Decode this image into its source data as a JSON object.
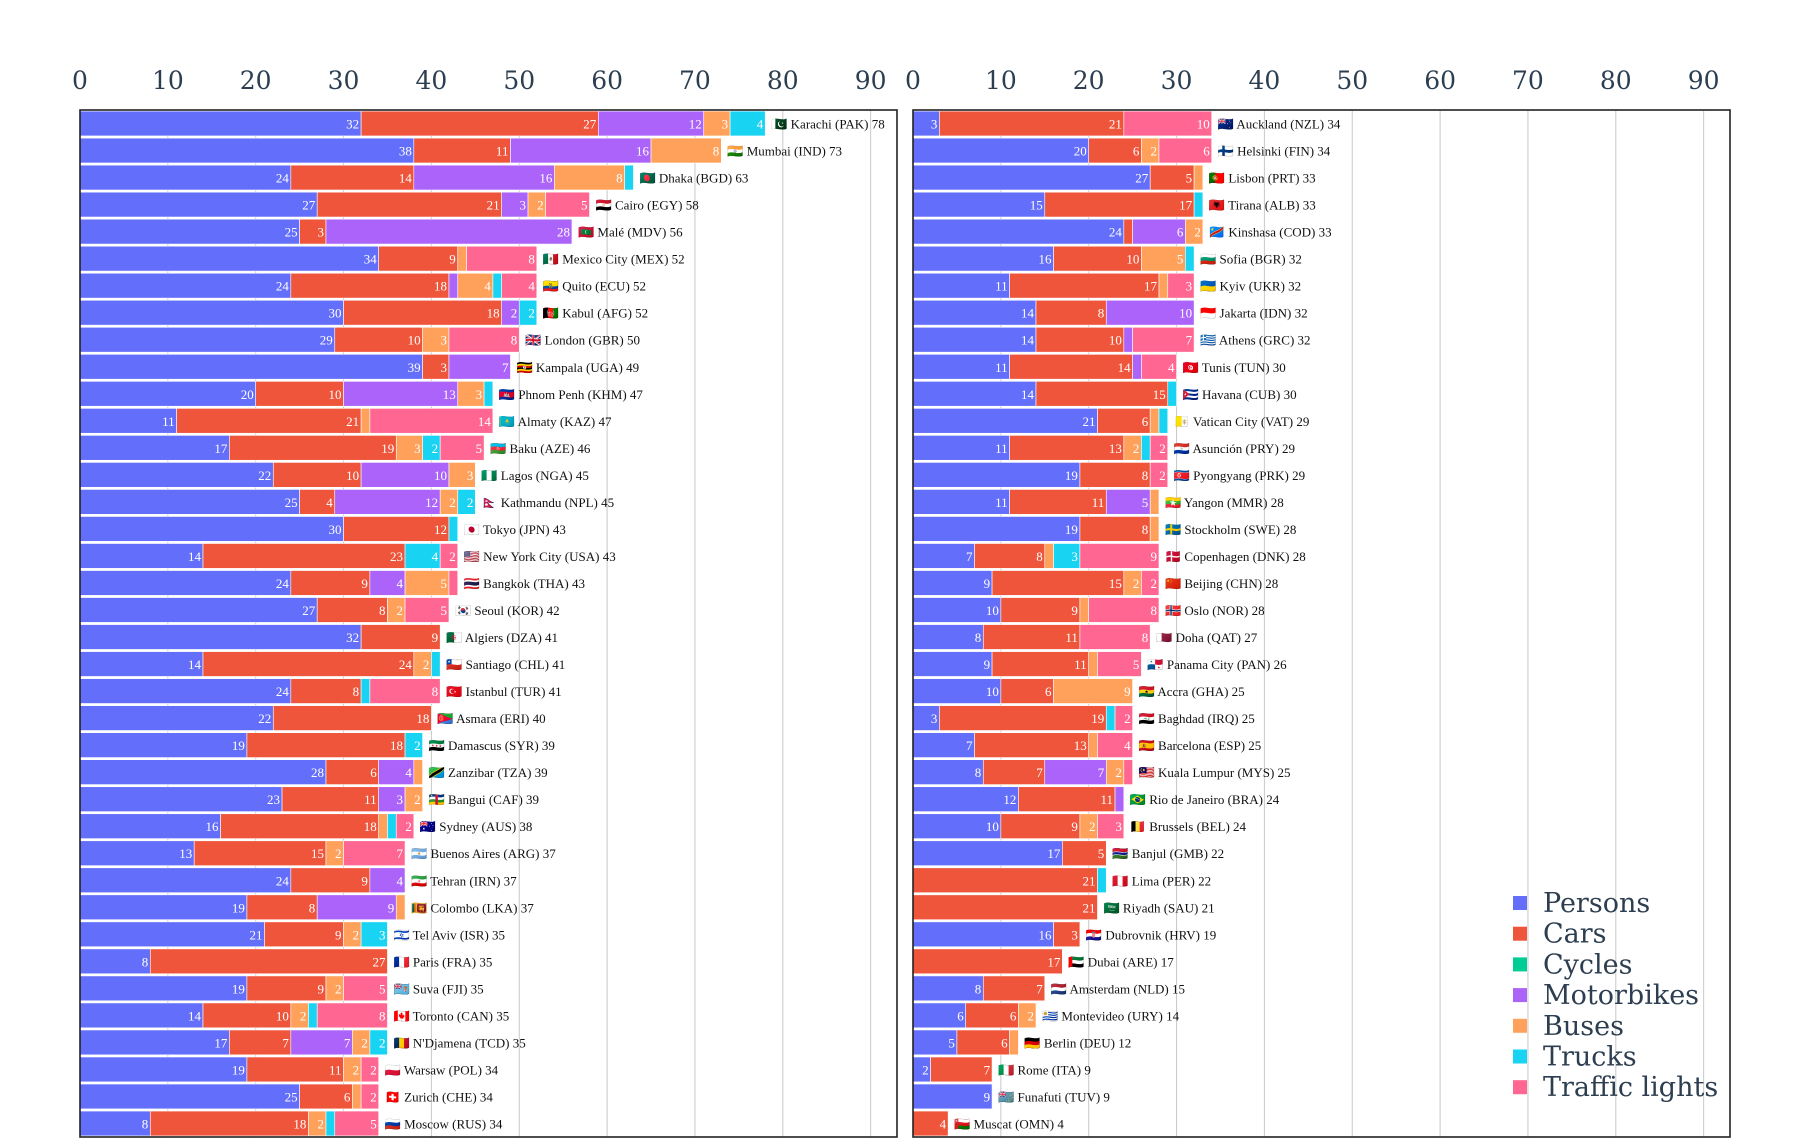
{
  "chart_data": {
    "type": "bar",
    "orientation": "horizontal",
    "stacked": true,
    "xlim": [
      0,
      93
    ],
    "xticks": [
      0,
      10,
      20,
      30,
      40,
      50,
      60,
      70,
      80,
      90
    ],
    "grid": "vertical",
    "legend_position": "bottom-right",
    "series": [
      {
        "name": "Persons",
        "color": "#636efa"
      },
      {
        "name": "Cars",
        "color": "#ef553b"
      },
      {
        "name": "Cycles",
        "color": "#00cc96"
      },
      {
        "name": "Motorbikes",
        "color": "#ab63fa"
      },
      {
        "name": "Buses",
        "color": "#ffa15a"
      },
      {
        "name": "Trucks",
        "color": "#19d3f3"
      },
      {
        "name": "Traffic lights",
        "color": "#ff6692"
      }
    ],
    "panels": [
      {
        "rows": [
          {
            "label": "🇵🇰 Karachi (PAK) 78",
            "values": [
              32,
              27,
              0,
              12,
              3,
              4,
              0
            ]
          },
          {
            "label": "🇮🇳 Mumbai (IND) 73",
            "values": [
              38,
              11,
              0,
              16,
              8,
              0,
              0
            ]
          },
          {
            "label": "🇧🇩 Dhaka (BGD) 63",
            "values": [
              24,
              14,
              0,
              16,
              8,
              1,
              0
            ]
          },
          {
            "label": "🇪🇬 Cairo (EGY) 58",
            "values": [
              27,
              21,
              0,
              3,
              2,
              0,
              5
            ]
          },
          {
            "label": "🇲🇻 Malé (MDV) 56",
            "values": [
              25,
              3,
              0,
              28,
              0,
              0,
              0
            ]
          },
          {
            "label": "🇲🇽 Mexico City (MEX) 52",
            "values": [
              34,
              9,
              0,
              0,
              1,
              0,
              8
            ]
          },
          {
            "label": "🇪🇨 Quito (ECU) 52",
            "values": [
              24,
              18,
              0,
              1,
              4,
              1,
              4
            ]
          },
          {
            "label": "🇦🇫 Kabul (AFG) 52",
            "values": [
              30,
              18,
              0,
              2,
              0,
              2,
              0
            ]
          },
          {
            "label": "🇬🇧 London (GBR) 50",
            "values": [
              29,
              10,
              0,
              0,
              3,
              0,
              8
            ]
          },
          {
            "label": "🇺🇬 Kampala (UGA) 49",
            "values": [
              39,
              3,
              0,
              7,
              0,
              0,
              0
            ]
          },
          {
            "label": "🇰🇭 Phnom Penh (KHM) 47",
            "values": [
              20,
              10,
              0,
              13,
              3,
              1,
              0
            ]
          },
          {
            "label": "🇰🇿 Almaty (KAZ) 47",
            "values": [
              11,
              21,
              0,
              0,
              1,
              0,
              14
            ]
          },
          {
            "label": "🇦🇿 Baku (AZE) 46",
            "values": [
              17,
              19,
              0,
              0,
              3,
              2,
              5
            ]
          },
          {
            "label": "🇳🇬 Lagos (NGA) 45",
            "values": [
              22,
              10,
              0,
              10,
              3,
              0,
              0
            ]
          },
          {
            "label": "🇳🇵 Kathmandu (NPL) 45",
            "values": [
              25,
              4,
              0,
              12,
              2,
              2,
              0
            ]
          },
          {
            "label": "🇯🇵 Tokyo (JPN) 43",
            "values": [
              30,
              12,
              0,
              0,
              0,
              1,
              0
            ]
          },
          {
            "label": "🇺🇸 New York City (USA) 43",
            "values": [
              14,
              23,
              0,
              0,
              0,
              4,
              2
            ]
          },
          {
            "label": "🇹🇭 Bangkok (THA) 43",
            "values": [
              24,
              9,
              0,
              4,
              5,
              0,
              1
            ]
          },
          {
            "label": "🇰🇷 Seoul (KOR) 42",
            "values": [
              27,
              8,
              0,
              0,
              2,
              0,
              5
            ]
          },
          {
            "label": "🇩🇿 Algiers (DZA) 41",
            "values": [
              32,
              9,
              0,
              0,
              0,
              0,
              0
            ]
          },
          {
            "label": "🇨🇱 Santiago (CHL) 41",
            "values": [
              14,
              24,
              0,
              0,
              2,
              1,
              0
            ]
          },
          {
            "label": "🇹🇷 Istanbul (TUR) 41",
            "values": [
              24,
              8,
              0,
              0,
              0,
              1,
              8
            ]
          },
          {
            "label": "🇪🇷 Asmara (ERI) 40",
            "values": [
              22,
              18,
              0,
              0,
              0,
              0,
              0
            ]
          },
          {
            "label": "🇸🇾 Damascus (SYR) 39",
            "values": [
              19,
              18,
              0,
              0,
              0,
              2,
              0
            ]
          },
          {
            "label": "🇹🇿 Zanzibar (TZA) 39",
            "values": [
              28,
              6,
              0,
              4,
              1,
              0,
              0
            ]
          },
          {
            "label": "🇨🇫 Bangui (CAF) 39",
            "values": [
              23,
              11,
              0,
              3,
              2,
              0,
              0
            ]
          },
          {
            "label": "🇦🇺 Sydney (AUS) 38",
            "values": [
              16,
              18,
              0,
              0,
              1,
              1,
              2
            ]
          },
          {
            "label": "🇦🇷 Buenos Aires (ARG) 37",
            "values": [
              13,
              15,
              0,
              0,
              2,
              0,
              7
            ]
          },
          {
            "label": "🇮🇷 Tehran (IRN) 37",
            "values": [
              24,
              9,
              0,
              4,
              0,
              0,
              0
            ]
          },
          {
            "label": "🇱🇰 Colombo (LKA) 37",
            "values": [
              19,
              8,
              0,
              9,
              1,
              0,
              0
            ]
          },
          {
            "label": "🇮🇱 Tel Aviv (ISR) 35",
            "values": [
              21,
              9,
              0,
              0,
              2,
              3,
              0
            ]
          },
          {
            "label": "🇫🇷 Paris (FRA) 35",
            "values": [
              8,
              27,
              0,
              0,
              0,
              0,
              0
            ]
          },
          {
            "label": "🇫🇯 Suva (FJI) 35",
            "values": [
              19,
              9,
              0,
              0,
              2,
              0,
              5
            ]
          },
          {
            "label": "🇨🇦 Toronto (CAN) 35",
            "values": [
              14,
              10,
              0,
              0,
              2,
              1,
              8
            ]
          },
          {
            "label": "🇹🇩 N'Djamena (TCD) 35",
            "values": [
              17,
              7,
              0,
              7,
              2,
              2,
              0
            ]
          },
          {
            "label": "🇵🇱 Warsaw (POL) 34",
            "values": [
              19,
              11,
              0,
              0,
              2,
              0,
              2
            ]
          },
          {
            "label": "🇨🇭 Zurich (CHE) 34",
            "values": [
              25,
              6,
              0,
              0,
              1,
              0,
              2
            ]
          },
          {
            "label": "🇷🇺 Moscow (RUS) 34",
            "values": [
              8,
              18,
              0,
              0,
              2,
              1,
              5
            ]
          }
        ]
      },
      {
        "rows": [
          {
            "label": "🇳🇿 Auckland (NZL) 34",
            "values": [
              3,
              21,
              0,
              0,
              0,
              0,
              10
            ]
          },
          {
            "label": "🇫🇮 Helsinki (FIN) 34",
            "values": [
              20,
              6,
              0,
              0,
              2,
              0,
              6
            ]
          },
          {
            "label": "🇵🇹 Lisbon (PRT) 33",
            "values": [
              27,
              5,
              0,
              0,
              1,
              0,
              0
            ]
          },
          {
            "label": "🇦🇱 Tirana (ALB) 33",
            "values": [
              15,
              17,
              0,
              0,
              0,
              1,
              0
            ]
          },
          {
            "label": "🇨🇩 Kinshasa (COD) 33",
            "values": [
              24,
              1,
              0,
              6,
              2,
              0,
              0
            ]
          },
          {
            "label": "🇧🇬 Sofia (BGR) 32",
            "values": [
              16,
              10,
              0,
              0,
              5,
              1,
              0
            ]
          },
          {
            "label": "🇺🇦 Kyiv (UKR) 32",
            "values": [
              11,
              17,
              0,
              0,
              1,
              0,
              3
            ]
          },
          {
            "label": "🇮🇩 Jakarta (IDN) 32",
            "values": [
              14,
              8,
              0,
              10,
              0,
              0,
              0
            ]
          },
          {
            "label": "🇬🇷 Athens (GRC) 32",
            "values": [
              14,
              10,
              0,
              1,
              0,
              0,
              7
            ]
          },
          {
            "label": "🇹🇳 Tunis (TUN) 30",
            "values": [
              11,
              14,
              0,
              1,
              0,
              0,
              4
            ]
          },
          {
            "label": "🇨🇺 Havana (CUB) 30",
            "values": [
              14,
              15,
              0,
              0,
              0,
              1,
              0
            ]
          },
          {
            "label": "🇻🇦 Vatican City (VAT) 29",
            "values": [
              21,
              6,
              0,
              0,
              1,
              1,
              0
            ]
          },
          {
            "label": "🇵🇾 Asunción (PRY) 29",
            "values": [
              11,
              13,
              0,
              0,
              2,
              1,
              2
            ]
          },
          {
            "label": "🇰🇵 Pyongyang (PRK) 29",
            "values": [
              19,
              8,
              0,
              0,
              0,
              0,
              2
            ]
          },
          {
            "label": "🇲🇲 Yangon (MMR) 28",
            "values": [
              11,
              11,
              0,
              5,
              1,
              0,
              0
            ]
          },
          {
            "label": "🇸🇪 Stockholm (SWE) 28",
            "values": [
              19,
              8,
              0,
              0,
              1,
              0,
              0
            ]
          },
          {
            "label": "🇩🇰 Copenhagen (DNK) 28",
            "values": [
              7,
              8,
              0,
              0,
              1,
              3,
              9
            ]
          },
          {
            "label": "🇨🇳 Beijing (CHN) 28",
            "values": [
              9,
              15,
              0,
              0,
              2,
              0,
              2
            ]
          },
          {
            "label": "🇳🇴 Oslo (NOR) 28",
            "values": [
              10,
              9,
              0,
              0,
              1,
              0,
              8
            ]
          },
          {
            "label": "🇶🇦 Doha (QAT) 27",
            "values": [
              8,
              11,
              0,
              0,
              0,
              0,
              8
            ]
          },
          {
            "label": "🇵🇦 Panama City (PAN) 26",
            "values": [
              9,
              11,
              0,
              0,
              1,
              0,
              5
            ]
          },
          {
            "label": "🇬🇭 Accra (GHA) 25",
            "values": [
              10,
              6,
              0,
              0,
              9,
              0,
              0
            ]
          },
          {
            "label": "🇮🇶 Baghdad (IRQ) 25",
            "values": [
              3,
              19,
              0,
              0,
              0,
              1,
              2
            ]
          },
          {
            "label": "🇪🇸 Barcelona (ESP) 25",
            "values": [
              7,
              13,
              0,
              0,
              1,
              0,
              4
            ]
          },
          {
            "label": "🇲🇾 Kuala Lumpur (MYS) 25",
            "values": [
              8,
              7,
              0,
              7,
              2,
              0,
              1
            ]
          },
          {
            "label": "🇧🇷 Rio de Janeiro (BRA) 24",
            "values": [
              12,
              11,
              0,
              1,
              0,
              0,
              0
            ]
          },
          {
            "label": "🇧🇪 Brussels (BEL) 24",
            "values": [
              10,
              9,
              0,
              0,
              2,
              0,
              3
            ]
          },
          {
            "label": "🇬🇲 Banjul (GMB) 22",
            "values": [
              17,
              5,
              0,
              0,
              0,
              0,
              0
            ]
          },
          {
            "label": "🇵🇪 Lima (PER) 22",
            "values": [
              0,
              21,
              0,
              0,
              0,
              1,
              0
            ]
          },
          {
            "label": "🇸🇦 Riyadh (SAU) 21",
            "values": [
              0,
              21,
              0,
              0,
              0,
              0,
              0
            ]
          },
          {
            "label": "🇭🇷 Dubrovnik (HRV) 19",
            "values": [
              16,
              3,
              0,
              0,
              0,
              0,
              0
            ]
          },
          {
            "label": "🇦🇪 Dubai (ARE) 17",
            "values": [
              0,
              17,
              0,
              0,
              0,
              0,
              0
            ]
          },
          {
            "label": "🇳🇱 Amsterdam (NLD) 15",
            "values": [
              8,
              7,
              0,
              0,
              0,
              0,
              0
            ]
          },
          {
            "label": "🇺🇾 Montevideo (URY) 14",
            "values": [
              6,
              6,
              0,
              0,
              2,
              0,
              0
            ]
          },
          {
            "label": "🇩🇪 Berlin (DEU) 12",
            "values": [
              5,
              6,
              0,
              0,
              1,
              0,
              0
            ]
          },
          {
            "label": "🇮🇹 Rome (ITA) 9",
            "values": [
              2,
              7,
              0,
              0,
              0,
              0,
              0
            ]
          },
          {
            "label": "🇹🇻 Funafuti (TUV) 9",
            "values": [
              9,
              0,
              0,
              0,
              0,
              0,
              0
            ]
          },
          {
            "label": "🇴🇲 Muscat (OMN) 4",
            "values": [
              0,
              4,
              0,
              0,
              0,
              0,
              0
            ]
          }
        ]
      }
    ]
  }
}
